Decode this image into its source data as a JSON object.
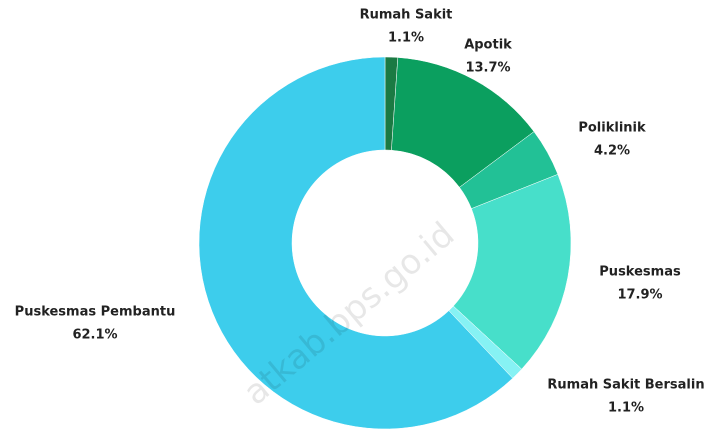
{
  "chart_data": {
    "type": "donut",
    "categories": [
      "Rumah Sakit",
      "Apotik",
      "Poliklinik",
      "Puskesmas",
      "Rumah Sakit Bersalin",
      "Puskesmas Pembantu"
    ],
    "values": [
      1.1,
      13.7,
      4.2,
      17.9,
      1.1,
      62.1
    ],
    "value_labels": [
      "1.1%",
      "13.7%",
      "4.2%",
      "17.9%",
      "1.1%",
      "62.1%"
    ],
    "colors": [
      "#1b7a43",
      "#0b9f5f",
      "#22c196",
      "#47dfca",
      "#86f2f4",
      "#3dcdec"
    ],
    "watermark": "atkab.bps.go.id"
  }
}
